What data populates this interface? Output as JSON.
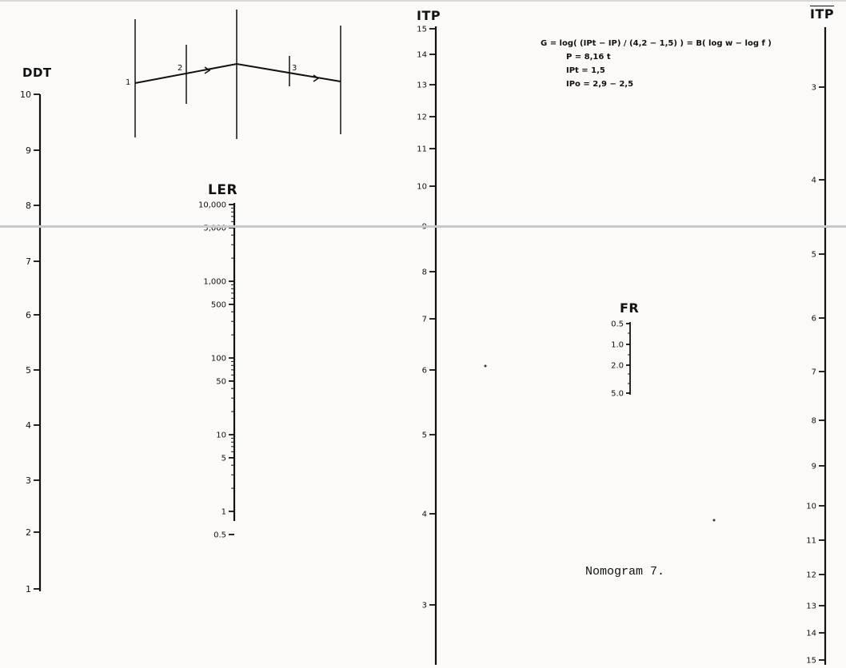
{
  "scales": {
    "ddt": {
      "title": "DDT",
      "ticks": [
        "10",
        "9",
        "8",
        "7",
        "6",
        "5",
        "4",
        "3",
        "2",
        "1"
      ]
    },
    "ler": {
      "title": "LER",
      "ticks": [
        "10,000",
        "5,000",
        "1,000",
        "500",
        "100",
        "50",
        "10",
        "5",
        "1",
        "0.5"
      ]
    },
    "itp": {
      "title": "ITP",
      "ticks": [
        "15",
        "14",
        "13",
        "12",
        "11",
        "10",
        "9",
        "8",
        "7",
        "6",
        "5",
        "4",
        "3"
      ]
    },
    "fr": {
      "title": "FR",
      "ticks": [
        "0.5",
        "1.0",
        "2.0",
        "5.0"
      ]
    },
    "itp_bar": {
      "title": "ITP",
      "ticks": [
        "3",
        "4",
        "5",
        "6",
        "7",
        "8",
        "9",
        "10",
        "11",
        "12",
        "13",
        "14",
        "15"
      ]
    }
  },
  "sketch": {
    "point_labels": [
      "1",
      "2",
      "3"
    ]
  },
  "formula": {
    "line1": "G = log( (IPt − IP) / (4,2 − 1,5) ) = B( log w − log f )",
    "line2": "P = 8,16 t",
    "line3": "IPt = 1,5",
    "line4": "IPo = 2,9 − 2,5"
  },
  "caption": "Nomogram  7."
}
